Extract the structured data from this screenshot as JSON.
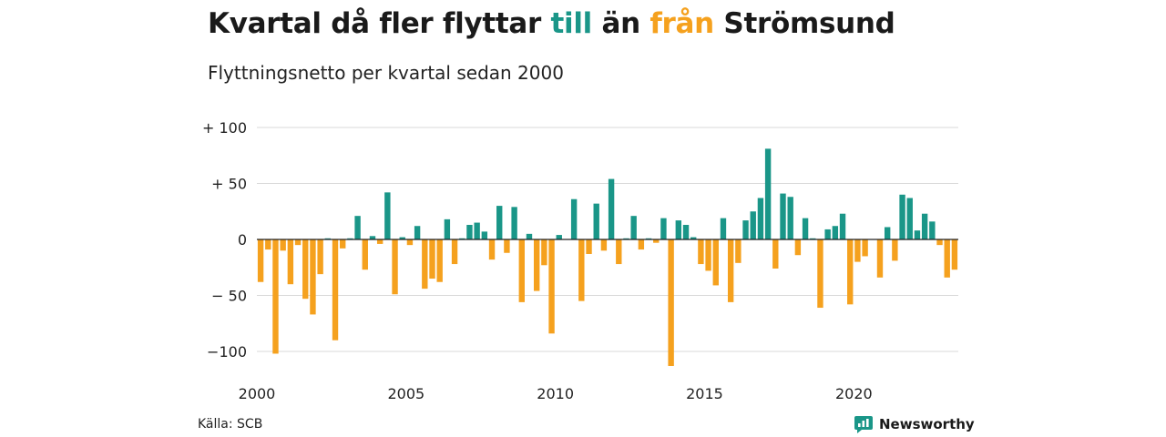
{
  "title": {
    "part1": "Kvartal då fler flyttar ",
    "part2": "till",
    "part3": " än ",
    "part4": "från",
    "part5": " Strömsund"
  },
  "subtitle": "Flyttningsnetto per kvartal sedan 2000",
  "source": "Källa: SCB",
  "brand": {
    "name": "Newsworthy",
    "icon": "newsworthy-logo-icon"
  },
  "colors": {
    "positive": "#1a9688",
    "negative": "#f5a11e",
    "brand": "#1a9688",
    "grid": "#d9d9d9"
  },
  "chart_data": {
    "type": "bar",
    "title": "Kvartal då fler flyttar till än från Strömsund",
    "subtitle": "Flyttningsnetto per kvartal sedan 2000",
    "xlabel": "",
    "ylabel": "",
    "x_start": "2000 Q1",
    "x_ticks": [
      "2000",
      "2005",
      "2010",
      "2015",
      "2020"
    ],
    "y_ticks": [
      {
        "value": 100,
        "label": "+ 100"
      },
      {
        "value": 50,
        "label": "+  50"
      },
      {
        "value": 0,
        "label": "0"
      },
      {
        "value": -50,
        "label": "− 50"
      },
      {
        "value": -100,
        "label": "−100"
      }
    ],
    "ylim": [
      -115,
      100
    ],
    "grid": true,
    "legend": "none",
    "values": [
      -38,
      -9,
      -102,
      -10,
      -40,
      -5,
      -53,
      -67,
      -31,
      1,
      -90,
      -8,
      1,
      21,
      -27,
      3,
      -4,
      42,
      -49,
      2,
      -5,
      12,
      -44,
      -35,
      -38,
      18,
      -22,
      1,
      13,
      15,
      7,
      -18,
      30,
      -12,
      29,
      -56,
      5,
      -46,
      -23,
      -84,
      4,
      0,
      36,
      -55,
      -13,
      32,
      -10,
      54,
      -22,
      1,
      21,
      -9,
      1,
      -3,
      19,
      -113,
      17,
      13,
      2,
      -22,
      -28,
      -41,
      19,
      -56,
      -21,
      17,
      25,
      37,
      81,
      -26,
      41,
      38,
      -14,
      19,
      1,
      -61,
      9,
      12,
      23,
      -58,
      -20,
      -15,
      0,
      -34,
      11,
      -19,
      40,
      37,
      8,
      23,
      16,
      -5,
      -34,
      -27
    ]
  }
}
